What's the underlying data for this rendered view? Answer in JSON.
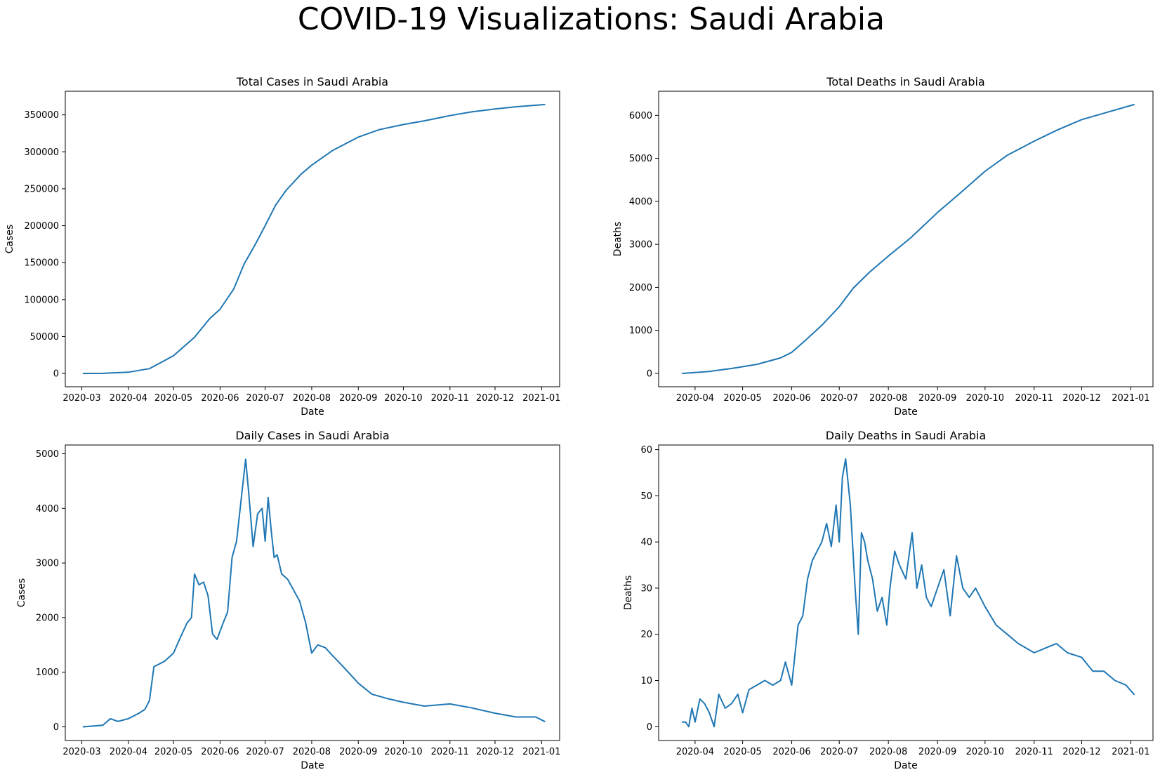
{
  "figure_title": "COVID-19 Visualizations: Saudi Arabia",
  "chart_data": [
    {
      "type": "line",
      "title": "Total Cases in Saudi Arabia",
      "xlabel": "Date",
      "ylabel": "Cases",
      "xlim": [
        "2020-02-19",
        "2021-01-13"
      ],
      "ylim": [
        -18000,
        382000
      ],
      "xticks": [
        "2020-03",
        "2020-04",
        "2020-05",
        "2020-06",
        "2020-07",
        "2020-08",
        "2020-09",
        "2020-10",
        "2020-11",
        "2020-12",
        "2021-01"
      ],
      "yticks": [
        0,
        50000,
        100000,
        150000,
        200000,
        250000,
        300000,
        350000
      ],
      "series": [
        {
          "x": [
            "2020-03-02",
            "2020-03-15",
            "2020-04-01",
            "2020-04-15",
            "2020-05-01",
            "2020-05-15",
            "2020-05-25",
            "2020-06-01",
            "2020-06-10",
            "2020-06-17",
            "2020-06-24",
            "2020-07-01",
            "2020-07-08",
            "2020-07-15",
            "2020-07-25",
            "2020-08-01",
            "2020-08-15",
            "2020-09-01",
            "2020-09-15",
            "2020-10-01",
            "2020-10-15",
            "2020-11-01",
            "2020-11-15",
            "2020-12-01",
            "2020-12-15",
            "2021-01-03"
          ],
          "y": [
            0,
            100,
            1700,
            6500,
            24000,
            49000,
            74000,
            87000,
            114000,
            148000,
            173000,
            200000,
            228000,
            248000,
            270000,
            282000,
            302000,
            320000,
            330000,
            337000,
            342000,
            349000,
            354000,
            358000,
            361000,
            364000
          ]
        }
      ]
    },
    {
      "type": "line",
      "title": "Total Deaths in Saudi Arabia",
      "xlabel": "Date",
      "ylabel": "Deaths",
      "xlim": [
        "2020-03-09",
        "2021-01-15"
      ],
      "ylim": [
        -310,
        6560
      ],
      "xticks": [
        "2020-04",
        "2020-05",
        "2020-06",
        "2020-07",
        "2020-08",
        "2020-09",
        "2020-10",
        "2020-11",
        "2020-12",
        "2021-01"
      ],
      "yticks": [
        0,
        1000,
        2000,
        3000,
        4000,
        5000,
        6000
      ],
      "series": [
        {
          "x": [
            "2020-03-24",
            "2020-04-10",
            "2020-04-25",
            "2020-05-10",
            "2020-05-25",
            "2020-06-01",
            "2020-06-10",
            "2020-06-20",
            "2020-07-01",
            "2020-07-10",
            "2020-07-20",
            "2020-08-01",
            "2020-08-15",
            "2020-09-01",
            "2020-09-15",
            "2020-10-01",
            "2020-10-15",
            "2020-11-01",
            "2020-11-15",
            "2020-12-01",
            "2020-12-15",
            "2021-01-03"
          ],
          "y": [
            0,
            45,
            120,
            210,
            360,
            490,
            780,
            1120,
            1550,
            1990,
            2350,
            2730,
            3150,
            3740,
            4180,
            4700,
            5070,
            5400,
            5650,
            5900,
            6050,
            6250
          ]
        }
      ]
    },
    {
      "type": "line",
      "title": "Daily Cases in Saudi Arabia",
      "xlabel": "Date",
      "ylabel": "Cases",
      "xlim": [
        "2020-02-19",
        "2021-01-13"
      ],
      "ylim": [
        -250,
        5160
      ],
      "xticks": [
        "2020-03",
        "2020-04",
        "2020-05",
        "2020-06",
        "2020-07",
        "2020-08",
        "2020-09",
        "2020-10",
        "2020-11",
        "2020-12",
        "2021-01"
      ],
      "yticks": [
        0,
        1000,
        2000,
        3000,
        4000,
        5000
      ],
      "series": [
        {
          "x": [
            "2020-03-02",
            "2020-03-15",
            "2020-03-20",
            "2020-03-25",
            "2020-04-01",
            "2020-04-08",
            "2020-04-12",
            "2020-04-15",
            "2020-04-18",
            "2020-04-25",
            "2020-05-01",
            "2020-05-05",
            "2020-05-10",
            "2020-05-13",
            "2020-05-15",
            "2020-05-18",
            "2020-05-21",
            "2020-05-24",
            "2020-05-27",
            "2020-05-30",
            "2020-06-03",
            "2020-06-06",
            "2020-06-09",
            "2020-06-12",
            "2020-06-14",
            "2020-06-16",
            "2020-06-18",
            "2020-06-20",
            "2020-06-23",
            "2020-06-26",
            "2020-06-29",
            "2020-07-01",
            "2020-07-03",
            "2020-07-05",
            "2020-07-07",
            "2020-07-09",
            "2020-07-12",
            "2020-07-16",
            "2020-07-20",
            "2020-07-24",
            "2020-07-28",
            "2020-08-01",
            "2020-08-05",
            "2020-08-10",
            "2020-08-15",
            "2020-08-22",
            "2020-09-01",
            "2020-09-10",
            "2020-09-20",
            "2020-10-01",
            "2020-10-15",
            "2020-11-01",
            "2020-11-15",
            "2020-12-01",
            "2020-12-15",
            "2020-12-28",
            "2021-01-03"
          ],
          "y": [
            0,
            30,
            150,
            100,
            150,
            250,
            320,
            480,
            1100,
            1200,
            1350,
            1600,
            1900,
            2000,
            2800,
            2600,
            2650,
            2400,
            1700,
            1600,
            1900,
            2100,
            3100,
            3400,
            3900,
            4400,
            4900,
            4300,
            3300,
            3900,
            4000,
            3400,
            4200,
            3600,
            3100,
            3150,
            2800,
            2700,
            2500,
            2300,
            1900,
            1350,
            1500,
            1450,
            1300,
            1100,
            800,
            600,
            520,
            450,
            380,
            420,
            350,
            250,
            180,
            180,
            100
          ]
        }
      ]
    },
    {
      "type": "line",
      "title": "Daily Deaths in Saudi Arabia",
      "xlabel": "Date",
      "ylabel": "Deaths",
      "xlim": [
        "2020-03-09",
        "2021-01-15"
      ],
      "ylim": [
        -3,
        61
      ],
      "xticks": [
        "2020-04",
        "2020-05",
        "2020-06",
        "2020-07",
        "2020-08",
        "2020-09",
        "2020-10",
        "2020-11",
        "2020-12",
        "2021-01"
      ],
      "yticks": [
        0,
        10,
        20,
        30,
        40,
        50,
        60
      ],
      "series": [
        {
          "x": [
            "2020-03-24",
            "2020-03-26",
            "2020-03-28",
            "2020-03-30",
            "2020-04-01",
            "2020-04-04",
            "2020-04-07",
            "2020-04-10",
            "2020-04-13",
            "2020-04-16",
            "2020-04-20",
            "2020-04-24",
            "2020-04-28",
            "2020-05-01",
            "2020-05-05",
            "2020-05-10",
            "2020-05-15",
            "2020-05-20",
            "2020-05-25",
            "2020-05-28",
            "2020-06-01",
            "2020-06-05",
            "2020-06-08",
            "2020-06-11",
            "2020-06-14",
            "2020-06-17",
            "2020-06-20",
            "2020-06-23",
            "2020-06-26",
            "2020-06-29",
            "2020-07-01",
            "2020-07-03",
            "2020-07-05",
            "2020-07-08",
            "2020-07-11",
            "2020-07-13",
            "2020-07-15",
            "2020-07-17",
            "2020-07-19",
            "2020-07-22",
            "2020-07-25",
            "2020-07-28",
            "2020-07-31",
            "2020-08-02",
            "2020-08-05",
            "2020-08-08",
            "2020-08-12",
            "2020-08-16",
            "2020-08-19",
            "2020-08-22",
            "2020-08-25",
            "2020-08-28",
            "2020-09-01",
            "2020-09-05",
            "2020-09-09",
            "2020-09-13",
            "2020-09-17",
            "2020-09-21",
            "2020-09-25",
            "2020-10-01",
            "2020-10-08",
            "2020-10-15",
            "2020-10-22",
            "2020-11-01",
            "2020-11-08",
            "2020-11-15",
            "2020-11-22",
            "2020-12-01",
            "2020-12-08",
            "2020-12-15",
            "2020-12-22",
            "2020-12-29",
            "2021-01-03"
          ],
          "y": [
            1,
            1,
            0,
            4,
            1,
            6,
            5,
            3,
            0,
            7,
            4,
            5,
            7,
            3,
            8,
            9,
            10,
            9,
            10,
            14,
            9,
            22,
            24,
            32,
            36,
            38,
            40,
            44,
            39,
            48,
            40,
            54,
            58,
            48,
            30,
            20,
            42,
            40,
            36,
            32,
            25,
            28,
            22,
            30,
            38,
            35,
            32,
            42,
            30,
            35,
            28,
            26,
            30,
            34,
            24,
            37,
            30,
            28,
            30,
            26,
            22,
            20,
            18,
            16,
            17,
            18,
            16,
            15,
            12,
            12,
            10,
            9,
            7
          ]
        }
      ]
    }
  ]
}
